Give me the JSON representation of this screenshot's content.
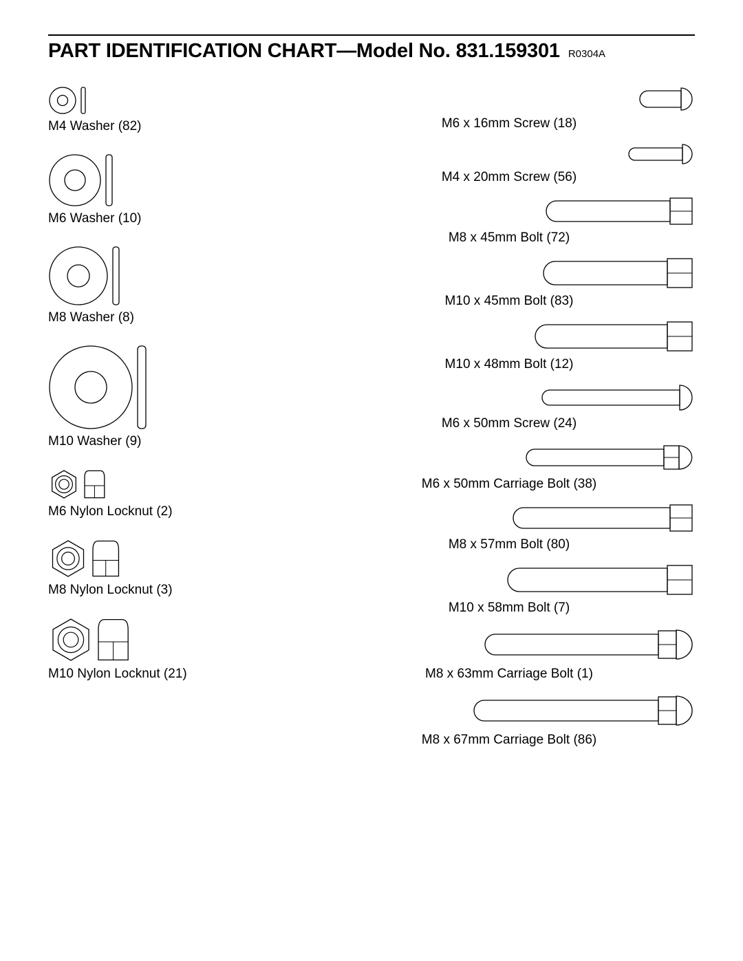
{
  "header": {
    "title": "PART IDENTIFICATION CHART—Model No. 831.159301",
    "revision": "R0304A"
  },
  "stroke_color": "#000000",
  "fill_color": "#ffffff",
  "label_fontsize": 19,
  "title_fontsize": 29,
  "left_column": [
    {
      "label": "M4 Washer (82)",
      "type": "washer",
      "outer": 38,
      "inner": 15,
      "side_w": 6,
      "side_h": 38
    },
    {
      "label": "M6 Washer (10)",
      "type": "washer",
      "outer": 74,
      "inner": 30,
      "side_w": 9,
      "side_h": 74
    },
    {
      "label": "M8 Washer (8)",
      "type": "washer",
      "outer": 84,
      "inner": 32,
      "side_w": 9,
      "side_h": 84
    },
    {
      "label": "M10 Washer (9)",
      "type": "washer",
      "outer": 120,
      "inner": 46,
      "side_w": 12,
      "side_h": 120
    },
    {
      "label": "M6 Nylon Locknut (2)",
      "type": "locknut",
      "hex": 40
    },
    {
      "label": "M8 Nylon Locknut (3)",
      "type": "locknut",
      "hex": 52
    },
    {
      "label": "M10 Nylon Locknut (21)",
      "type": "locknut",
      "hex": 60
    }
  ],
  "right_column": [
    {
      "label": "M6 x 16mm Screw (18)",
      "type": "screw_round",
      "shaft": 60,
      "head_w": 16,
      "shaft_h": 24
    },
    {
      "label": "M4 x 20mm Screw (56)",
      "type": "screw_round",
      "shaft": 78,
      "head_w": 14,
      "shaft_h": 18
    },
    {
      "label": "M8 x 45mm Bolt (72)",
      "type": "bolt_hex",
      "shaft": 180,
      "head_w": 32,
      "shaft_h": 30
    },
    {
      "label": "M10 x 45mm Bolt (83)",
      "type": "bolt_hex",
      "shaft": 180,
      "head_w": 36,
      "shaft_h": 34
    },
    {
      "label": "M10 x 48mm Bolt (12)",
      "type": "bolt_hex",
      "shaft": 192,
      "head_w": 36,
      "shaft_h": 34
    },
    {
      "label": "M6 x 50mm Screw (24)",
      "type": "screw_round",
      "shaft": 200,
      "head_w": 18,
      "shaft_h": 22
    },
    {
      "label": "M6 x 50mm Carriage Bolt (38)",
      "type": "carriage",
      "shaft": 200,
      "head_w": 34,
      "shaft_h": 24,
      "neck": 22
    },
    {
      "label": "M8 x 57mm Bolt (80)",
      "type": "bolt_hex",
      "shaft": 228,
      "head_w": 32,
      "shaft_h": 30
    },
    {
      "label": "M10 x 58mm Bolt (7)",
      "type": "bolt_hex",
      "shaft": 232,
      "head_w": 36,
      "shaft_h": 34
    },
    {
      "label": "M8 x 63mm Carriage Bolt (1)",
      "type": "carriage",
      "shaft": 252,
      "head_w": 42,
      "shaft_h": 30,
      "neck": 26
    },
    {
      "label": "M8 x 67mm Carriage Bolt (86)",
      "type": "carriage",
      "shaft": 268,
      "head_w": 42,
      "shaft_h": 30,
      "neck": 26
    }
  ]
}
